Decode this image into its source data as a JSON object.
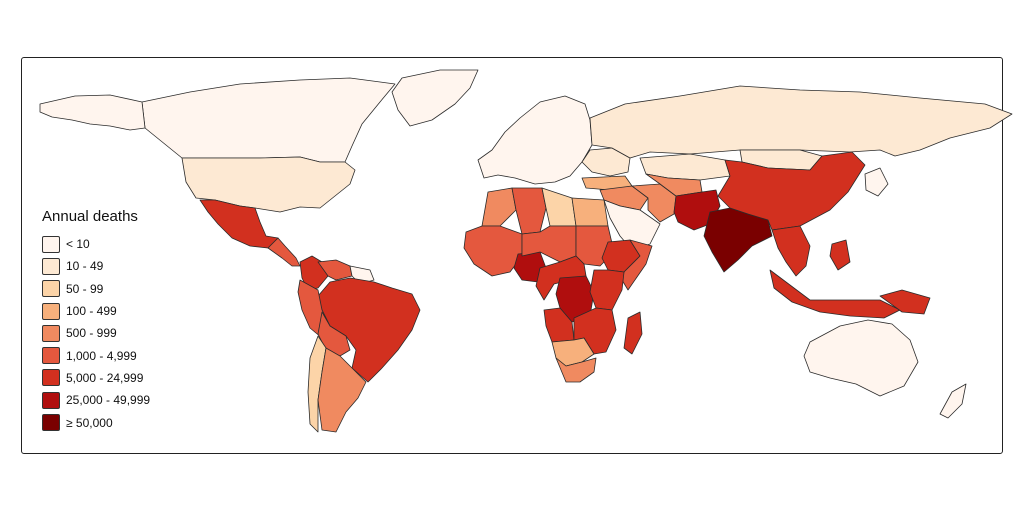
{
  "legend": {
    "title": "Annual deaths",
    "classes": [
      {
        "label": "< 10",
        "color": "#fff5ee"
      },
      {
        "label": "10 - 49",
        "color": "#fde9d3"
      },
      {
        "label": "50 - 99",
        "color": "#fcd4a8"
      },
      {
        "label": "100 - 499",
        "color": "#f7b07c"
      },
      {
        "label": "500 - 999",
        "color": "#f08a60"
      },
      {
        "label": "1,000 - 4,999",
        "color": "#e4583e"
      },
      {
        "label": "5,000 - 24,999",
        "color": "#d2301f"
      },
      {
        "label": "25,000 - 49,999",
        "color": "#b00e0e"
      },
      {
        "label": "≥ 50,000",
        "color": "#7a0000"
      }
    ]
  },
  "regions": [
    {
      "name": "Canada",
      "class": 0
    },
    {
      "name": "Alaska",
      "class": 0
    },
    {
      "name": "Greenland",
      "class": 0
    },
    {
      "name": "United States",
      "class": 1
    },
    {
      "name": "Mexico",
      "class": 6
    },
    {
      "name": "Central America",
      "class": 5
    },
    {
      "name": "Colombia",
      "class": 6
    },
    {
      "name": "Venezuela",
      "class": 5
    },
    {
      "name": "Guianas",
      "class": 0
    },
    {
      "name": "Brazil",
      "class": 6
    },
    {
      "name": "Peru",
      "class": 5
    },
    {
      "name": "Bolivia",
      "class": 5
    },
    {
      "name": "Chile",
      "class": 2
    },
    {
      "name": "Argentina",
      "class": 4
    },
    {
      "name": "Europe",
      "class": 0
    },
    {
      "name": "Eastern Europe",
      "class": 1
    },
    {
      "name": "Russia",
      "class": 1
    },
    {
      "name": "Kazakhstan",
      "class": 1
    },
    {
      "name": "Mongolia",
      "class": 1
    },
    {
      "name": "Turkey",
      "class": 3
    },
    {
      "name": "Middle East",
      "class": 4
    },
    {
      "name": "Saudi Arabia",
      "class": 0
    },
    {
      "name": "Iran",
      "class": 4
    },
    {
      "name": "Central Asia",
      "class": 4
    },
    {
      "name": "Pakistan and Afghanistan",
      "class": 7
    },
    {
      "name": "India",
      "class": 8
    },
    {
      "name": "China",
      "class": 6
    },
    {
      "name": "Southeast Asia",
      "class": 6
    },
    {
      "name": "Japan and Korea",
      "class": 0
    },
    {
      "name": "Indonesia",
      "class": 6
    },
    {
      "name": "Philippines",
      "class": 6
    },
    {
      "name": "Papua New Guinea",
      "class": 6
    },
    {
      "name": "Australia",
      "class": 0
    },
    {
      "name": "New Zealand",
      "class": 0
    },
    {
      "name": "Morocco",
      "class": 4
    },
    {
      "name": "Algeria",
      "class": 5
    },
    {
      "name": "Libya",
      "class": 2
    },
    {
      "name": "Egypt",
      "class": 3
    },
    {
      "name": "West Africa",
      "class": 5
    },
    {
      "name": "Nigeria",
      "class": 7
    },
    {
      "name": "Niger and Chad",
      "class": 5
    },
    {
      "name": "Sudan",
      "class": 5
    },
    {
      "name": "Ethiopia",
      "class": 6
    },
    {
      "name": "Somalia",
      "class": 5
    },
    {
      "name": "Central Africa",
      "class": 6
    },
    {
      "name": "DR Congo",
      "class": 7
    },
    {
      "name": "Kenya and Tanzania",
      "class": 6
    },
    {
      "name": "Angola",
      "class": 6
    },
    {
      "name": "Zambia and Mozambique",
      "class": 6
    },
    {
      "name": "Namibia and Botswana",
      "class": 3
    },
    {
      "name": "South Africa",
      "class": 4
    },
    {
      "name": "Madagascar",
      "class": 6
    }
  ]
}
